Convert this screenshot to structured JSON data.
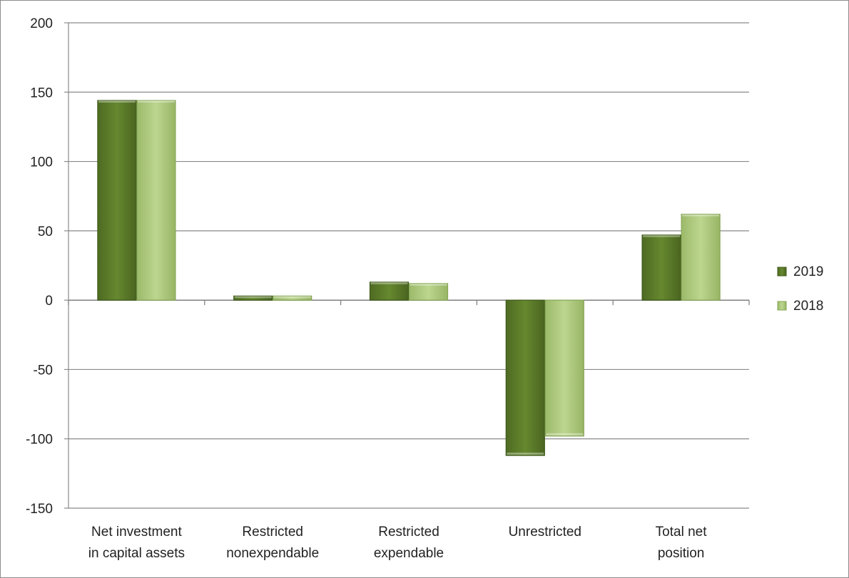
{
  "chart_data": {
    "type": "bar",
    "title": "",
    "xlabel": "",
    "ylabel": "",
    "categories": [
      [
        "Net investment",
        "in capital assets"
      ],
      [
        "Restricted",
        "nonexpendable"
      ],
      [
        "Restricted",
        "expendable"
      ],
      [
        "Unrestricted"
      ],
      [
        "Total net",
        "position"
      ]
    ],
    "series": [
      {
        "name": "2019",
        "values": [
          144,
          3,
          13,
          -112,
          47
        ],
        "color": "#5a7a2a"
      },
      {
        "name": "2018",
        "values": [
          144,
          3,
          12,
          -98,
          62
        ],
        "color": "#a9c77a"
      }
    ],
    "ylim": [
      -150,
      200
    ],
    "yticks": [
      200,
      150,
      100,
      50,
      0,
      -50,
      -100,
      -150
    ],
    "grid": true,
    "legend": "right"
  }
}
